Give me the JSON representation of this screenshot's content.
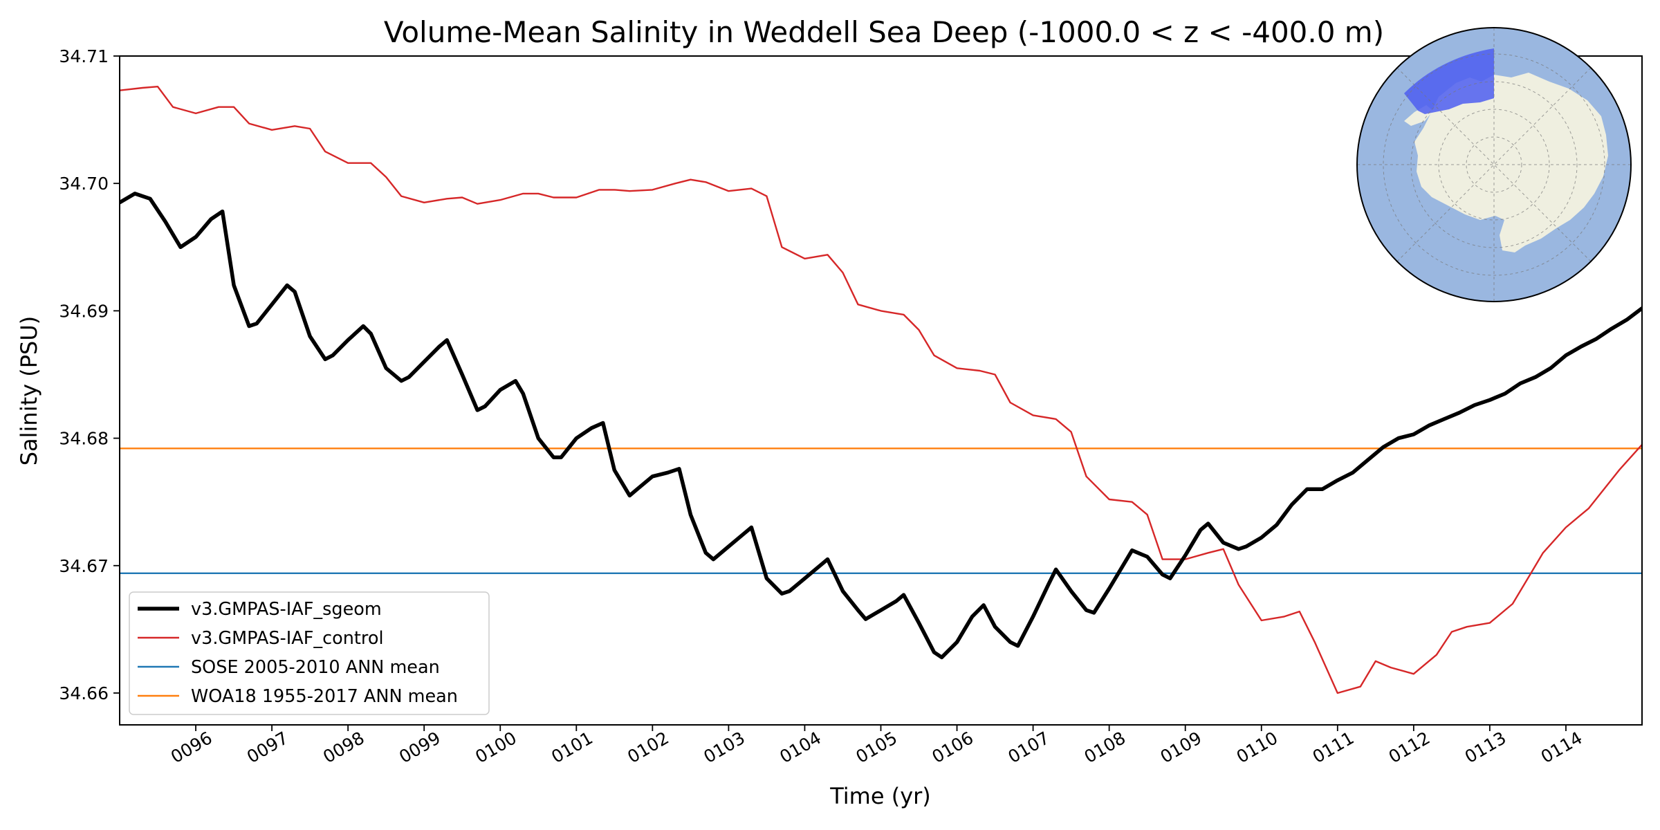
{
  "chart_data": {
    "type": "line",
    "title": "Volume-Mean Salinity in Weddell Sea Deep (-1000.0 < z < -400.0 m)",
    "xlabel": "Time (yr)",
    "ylabel": "Salinity (PSU)",
    "xlim": [
      95.0,
      115.0
    ],
    "ylim": [
      34.6575,
      34.71
    ],
    "x_ticks": [
      {
        "value": 96,
        "label": "0096"
      },
      {
        "value": 97,
        "label": "0097"
      },
      {
        "value": 98,
        "label": "0098"
      },
      {
        "value": 99,
        "label": "0099"
      },
      {
        "value": 100,
        "label": "0100"
      },
      {
        "value": 101,
        "label": "0101"
      },
      {
        "value": 102,
        "label": "0102"
      },
      {
        "value": 103,
        "label": "0103"
      },
      {
        "value": 104,
        "label": "0104"
      },
      {
        "value": 105,
        "label": "0105"
      },
      {
        "value": 106,
        "label": "0106"
      },
      {
        "value": 107,
        "label": "0107"
      },
      {
        "value": 108,
        "label": "0108"
      },
      {
        "value": 109,
        "label": "0109"
      },
      {
        "value": 110,
        "label": "0110"
      },
      {
        "value": 111,
        "label": "0111"
      },
      {
        "value": 112,
        "label": "0112"
      },
      {
        "value": 113,
        "label": "0113"
      },
      {
        "value": 114,
        "label": "0114"
      }
    ],
    "y_ticks": [
      {
        "value": 34.66,
        "label": "34.66"
      },
      {
        "value": 34.67,
        "label": "34.67"
      },
      {
        "value": 34.68,
        "label": "34.68"
      },
      {
        "value": 34.69,
        "label": "34.69"
      },
      {
        "value": 34.7,
        "label": "34.70"
      },
      {
        "value": 34.71,
        "label": "34.71"
      }
    ],
    "grid": false,
    "legend_position": "lower-left",
    "series": [
      {
        "name": "v3.GMPAS-IAF_sgeom",
        "color": "#000000",
        "style": "thick",
        "x": [
          95.0,
          95.2,
          95.4,
          95.6,
          95.8,
          96.0,
          96.2,
          96.35,
          96.5,
          96.7,
          96.8,
          97.0,
          97.2,
          97.3,
          97.5,
          97.7,
          97.8,
          98.0,
          98.2,
          98.3,
          98.5,
          98.7,
          98.8,
          99.0,
          99.2,
          99.3,
          99.5,
          99.7,
          99.8,
          100.0,
          100.2,
          100.3,
          100.5,
          100.7,
          100.8,
          101.0,
          101.2,
          101.35,
          101.5,
          101.7,
          101.8,
          102.0,
          102.2,
          102.35,
          102.5,
          102.7,
          102.8,
          103.0,
          103.2,
          103.3,
          103.5,
          103.7,
          103.8,
          104.0,
          104.2,
          104.3,
          104.5,
          104.7,
          104.8,
          105.0,
          105.2,
          105.3,
          105.5,
          105.7,
          105.8,
          106.0,
          106.2,
          106.35,
          106.5,
          106.7,
          106.8,
          107.0,
          107.2,
          107.3,
          107.5,
          107.7,
          107.8,
          108.0,
          108.2,
          108.3,
          108.5,
          108.7,
          108.8,
          109.0,
          109.2,
          109.3,
          109.5,
          109.7,
          109.8,
          110.0,
          110.2,
          110.4,
          110.6,
          110.8,
          111.0,
          111.2,
          111.4,
          111.6,
          111.8,
          112.0,
          112.2,
          112.4,
          112.6,
          112.8,
          113.0,
          113.2,
          113.4,
          113.6,
          113.8,
          114.0,
          114.2,
          114.4,
          114.6,
          114.8,
          115.0
        ],
        "values": [
          34.6985,
          34.6992,
          34.6988,
          34.697,
          34.695,
          34.6958,
          34.6972,
          34.6978,
          34.692,
          34.6888,
          34.689,
          34.6905,
          34.692,
          34.6915,
          34.688,
          34.6862,
          34.6865,
          34.6877,
          34.6888,
          34.6882,
          34.6855,
          34.6845,
          34.6848,
          34.686,
          34.6872,
          34.6877,
          34.685,
          34.6822,
          34.6825,
          34.6838,
          34.6845,
          34.6835,
          34.68,
          34.6785,
          34.6785,
          34.68,
          34.6808,
          34.6812,
          34.6775,
          34.6755,
          34.676,
          34.677,
          34.6773,
          34.6776,
          34.674,
          34.671,
          34.6705,
          34.6715,
          34.6725,
          34.673,
          34.669,
          34.6678,
          34.668,
          34.669,
          34.67,
          34.6705,
          34.668,
          34.6665,
          34.6658,
          34.6665,
          34.6672,
          34.6677,
          34.6655,
          34.6632,
          34.6628,
          34.664,
          34.666,
          34.6669,
          34.6652,
          34.664,
          34.6637,
          34.666,
          34.6685,
          34.6697,
          34.668,
          34.6665,
          34.6663,
          34.6682,
          34.6702,
          34.6712,
          34.6707,
          34.6693,
          34.669,
          34.6708,
          34.6728,
          34.6733,
          34.6718,
          34.6713,
          34.6715,
          34.6722,
          34.6732,
          34.6748,
          34.676,
          34.676,
          34.6767,
          34.6773,
          34.6783,
          34.6793,
          34.68,
          34.6803,
          34.681,
          34.6815,
          34.682,
          34.6826,
          34.683,
          34.6835,
          34.6843,
          34.6848,
          34.6855,
          34.6865,
          34.6872,
          34.6878,
          34.6886,
          34.6893,
          34.6902
        ]
      },
      {
        "name": "v3.GMPAS-IAF_control",
        "color": "#d62728",
        "style": "thin",
        "x": [
          95.0,
          95.3,
          95.5,
          95.7,
          96.0,
          96.3,
          96.5,
          96.7,
          97.0,
          97.3,
          97.5,
          97.7,
          98.0,
          98.3,
          98.5,
          98.7,
          99.0,
          99.3,
          99.5,
          99.7,
          100.0,
          100.3,
          100.5,
          100.7,
          101.0,
          101.3,
          101.5,
          101.7,
          102.0,
          102.3,
          102.5,
          102.7,
          103.0,
          103.3,
          103.5,
          103.7,
          104.0,
          104.3,
          104.5,
          104.7,
          105.0,
          105.3,
          105.5,
          105.7,
          106.0,
          106.3,
          106.5,
          106.7,
          107.0,
          107.3,
          107.5,
          107.7,
          108.0,
          108.3,
          108.5,
          108.7,
          109.0,
          109.3,
          109.5,
          109.7,
          110.0,
          110.3,
          110.5,
          110.7,
          111.0,
          111.3,
          111.5,
          111.7,
          112.0,
          112.3,
          112.5,
          112.7,
          113.0,
          113.3,
          113.5,
          113.7,
          114.0,
          114.3,
          114.5,
          114.7,
          115.0
        ],
        "values": [
          34.7073,
          34.7075,
          34.7076,
          34.706,
          34.7055,
          34.706,
          34.706,
          34.7047,
          34.7042,
          34.7045,
          34.7043,
          34.7025,
          34.7016,
          34.7016,
          34.7005,
          34.699,
          34.6985,
          34.6988,
          34.6989,
          34.6984,
          34.6987,
          34.6992,
          34.6992,
          34.6989,
          34.6989,
          34.6995,
          34.6995,
          34.6994,
          34.6995,
          34.7,
          34.7003,
          34.7001,
          34.6994,
          34.6996,
          34.699,
          34.695,
          34.6941,
          34.6944,
          34.693,
          34.6905,
          34.69,
          34.6897,
          34.6885,
          34.6865,
          34.6855,
          34.6853,
          34.685,
          34.6828,
          34.6818,
          34.6815,
          34.6805,
          34.677,
          34.6752,
          34.675,
          34.674,
          34.6705,
          34.6705,
          34.671,
          34.6713,
          34.6685,
          34.6657,
          34.666,
          34.6664,
          34.664,
          34.66,
          34.6605,
          34.6625,
          34.662,
          34.6615,
          34.663,
          34.6648,
          34.6652,
          34.6655,
          34.667,
          34.669,
          34.671,
          34.673,
          34.6745,
          34.676,
          34.6775,
          34.6795
        ]
      },
      {
        "name": "SOSE 2005-2010 ANN mean",
        "color": "#1f77b4",
        "style": "hline",
        "x": [
          95.0,
          115.0
        ],
        "values": [
          34.6694,
          34.6694
        ]
      },
      {
        "name": "WOA18 1955-2017 ANN mean",
        "color": "#ff7f0e",
        "style": "hline",
        "x": [
          95.0,
          115.0
        ],
        "values": [
          34.6792,
          34.6792
        ]
      }
    ]
  },
  "inset_map": {
    "ocean_color": "#9ab7e0",
    "land_color": "#efefe0",
    "region_color": "#4d5ef0"
  }
}
